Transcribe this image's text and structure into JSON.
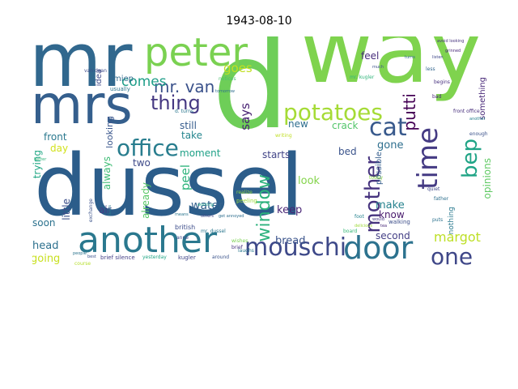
{
  "title": "1943-08-10",
  "palette": {
    "dark_blue": "#31688e",
    "navy": "#3b528b",
    "teal": "#21918c",
    "green": "#5ec962",
    "lime": "#90d743",
    "yellow": "#c8e020",
    "purple": "#440154",
    "violet": "#482878",
    "seafoam": "#35b779",
    "blue": "#2c728e"
  },
  "words": [
    {
      "text": "dussel",
      "color": "#2c5d8a"
    },
    {
      "text": "way",
      "color": "#7fd34e"
    },
    {
      "text": "mr",
      "color": "#31688e"
    },
    {
      "text": "d",
      "color": "#6ece58"
    },
    {
      "text": "mrs",
      "color": "#355f8d"
    },
    {
      "text": "peter",
      "color": "#7ad151"
    },
    {
      "text": "another",
      "color": "#2a788e"
    },
    {
      "text": "door",
      "color": "#2c728e"
    },
    {
      "text": "potatoes",
      "color": "#a5db36"
    },
    {
      "text": "office",
      "color": "#287d8e"
    },
    {
      "text": "mouschi",
      "color": "#3e4989"
    },
    {
      "text": "time",
      "color": "#443a83"
    },
    {
      "text": "mother",
      "color": "#46337e"
    },
    {
      "text": "cat",
      "color": "#38598c"
    },
    {
      "text": "window",
      "color": "#2db27d"
    },
    {
      "text": "bep",
      "color": "#20a486"
    },
    {
      "text": "one",
      "color": "#3f4788"
    },
    {
      "text": "thing",
      "color": "#453882"
    },
    {
      "text": "mr. van",
      "color": "#3b528b"
    },
    {
      "text": "comes",
      "color": "#1f9e89"
    },
    {
      "text": "margot",
      "color": "#bddf26"
    },
    {
      "text": "putti",
      "color": "#440154"
    },
    {
      "text": "water",
      "color": "#34618d"
    },
    {
      "text": "goes",
      "color": "#c2df23"
    },
    {
      "text": "says",
      "color": "#482173"
    },
    {
      "text": "bread",
      "color": "#3a538b"
    },
    {
      "text": "peel",
      "color": "#2fb47c"
    },
    {
      "text": "head",
      "color": "#2d708e"
    },
    {
      "text": "going",
      "color": "#c8e020"
    },
    {
      "text": "little",
      "color": "#3c4f8a"
    },
    {
      "text": "already",
      "color": "#58c765"
    },
    {
      "text": "always",
      "color": "#3dbc74"
    },
    {
      "text": "look",
      "color": "#84d44b"
    },
    {
      "text": "keep",
      "color": "#482475"
    },
    {
      "text": "make",
      "color": "#26828e"
    },
    {
      "text": "know",
      "color": "#481a6c"
    },
    {
      "text": "second",
      "color": "#433e85"
    },
    {
      "text": "gone",
      "color": "#2e6e8e"
    },
    {
      "text": "starts",
      "color": "#414487"
    },
    {
      "text": "moment",
      "color": "#1fa187"
    },
    {
      "text": "take",
      "color": "#25858e"
    },
    {
      "text": "still",
      "color": "#365c8d"
    },
    {
      "text": "two",
      "color": "#3e4a89"
    },
    {
      "text": "air",
      "color": "#433e85"
    },
    {
      "text": "soon",
      "color": "#2c728e"
    },
    {
      "text": "trying",
      "color": "#22a785"
    },
    {
      "text": "front",
      "color": "#2a788e"
    },
    {
      "text": "day",
      "color": "#d2e21b"
    },
    {
      "text": "looking",
      "color": "#39568c"
    },
    {
      "text": "feel",
      "color": "#472d7b"
    },
    {
      "text": "new",
      "color": "#2e6e8e"
    },
    {
      "text": "crack",
      "color": "#52c569"
    },
    {
      "text": "bed",
      "color": "#3a538b"
    },
    {
      "text": "possible",
      "color": "#365d8d"
    },
    {
      "text": "opinions",
      "color": "#5ec962"
    },
    {
      "text": "something",
      "color": "#482878"
    },
    {
      "text": "nothing",
      "color": "#29798e"
    },
    {
      "text": "idea",
      "color": "#3e4989"
    },
    {
      "text": "miep",
      "color": "#306a8e"
    },
    {
      "text": "usually",
      "color": "#2b748e"
    },
    {
      "text": "british",
      "color": "#3d4d8a"
    },
    {
      "text": "peeling",
      "color": "#9bd93c"
    },
    {
      "text": "realize",
      "color": "#8fd744"
    },
    {
      "text": "brief silence",
      "color": "#433d84"
    },
    {
      "text": "yesterday",
      "color": "#21a685"
    },
    {
      "text": "kugler",
      "color": "#404688"
    },
    {
      "text": "around",
      "color": "#3a538b"
    },
    {
      "text": "laughs",
      "color": "#2a788e"
    },
    {
      "text": "wishes",
      "color": "#7ad151"
    },
    {
      "text": "brief",
      "color": "#46337e"
    },
    {
      "text": "board",
      "color": "#37b878"
    },
    {
      "text": "mr. dussel",
      "color": "#2a768e"
    },
    {
      "text": "anne",
      "color": "#3f4889"
    },
    {
      "text": "walking",
      "color": "#3d4e8a"
    },
    {
      "text": "quiet",
      "color": "#3f4788"
    },
    {
      "text": "father",
      "color": "#2e6f8e"
    },
    {
      "text": "puts",
      "color": "#2c728e"
    },
    {
      "text": "today",
      "color": "#8bd646"
    },
    {
      "text": "course",
      "color": "#b5de2b"
    },
    {
      "text": "people",
      "color": "#2c738e"
    },
    {
      "text": "exchange",
      "color": "#3b528b"
    },
    {
      "text": "begins",
      "color": "#46307e"
    },
    {
      "text": "less",
      "color": "#32658e"
    },
    {
      "text": "bad",
      "color": "#482475"
    },
    {
      "text": "writing",
      "color": "#c0df25"
    },
    {
      "text": "tomorrow",
      "color": "#2e6d8e"
    },
    {
      "text": "d. turns",
      "color": "#2a768e"
    },
    {
      "text": "mr. kugler",
      "color": "#31b57b"
    },
    {
      "text": "front office",
      "color": "#472e7c"
    },
    {
      "text": "enough",
      "color": "#3b528b"
    },
    {
      "text": "another",
      "color": "#26818e"
    },
    {
      "text": "van daan",
      "color": "#3e4c8a"
    },
    {
      "text": "notices",
      "color": "#4ac16d"
    },
    {
      "text": "would",
      "color": "#453781"
    },
    {
      "text": "tea",
      "color": "#482878"
    },
    {
      "text": "foot",
      "color": "#25838e"
    },
    {
      "text": "means",
      "color": "#2a768e"
    },
    {
      "text": "much",
      "color": "#3b528b"
    },
    {
      "text": "listen",
      "color": "#3f4788"
    },
    {
      "text": "turns",
      "color": "#31688e"
    },
    {
      "text": "avoid looking",
      "color": "#46337e"
    },
    {
      "text": "grinned",
      "color": "#482878"
    },
    {
      "text": "best",
      "color": "#3b528b"
    },
    {
      "text": "better",
      "color": "#32b67a"
    },
    {
      "text": "takes",
      "color": "#2a788e"
    },
    {
      "text": "working",
      "color": "#1fa088"
    },
    {
      "text": "others",
      "color": "#3f4788"
    },
    {
      "text": "get annoyed",
      "color": "#2e6e8e"
    },
    {
      "text": "delicious",
      "color": "#9fda3a"
    }
  ]
}
